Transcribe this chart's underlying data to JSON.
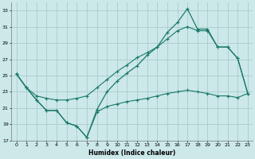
{
  "xlabel": "Humidex (Indice chaleur)",
  "background_color": "#cce8e8",
  "grid_color": "#aacccc",
  "line_color": "#1a7a6a",
  "xlim": [
    -0.5,
    23.5
  ],
  "ylim": [
    17,
    34
  ],
  "yticks": [
    17,
    19,
    21,
    23,
    25,
    27,
    29,
    31,
    33
  ],
  "xticks": [
    0,
    1,
    2,
    3,
    4,
    5,
    6,
    7,
    8,
    9,
    10,
    11,
    12,
    13,
    14,
    15,
    16,
    17,
    18,
    19,
    20,
    21,
    22,
    23
  ],
  "line_zigzag_y": [
    25.2,
    23.5,
    22.0,
    20.7,
    20.7,
    19.2,
    18.8,
    17.4,
    20.8,
    23.0,
    24.3,
    25.3,
    26.2,
    27.5,
    28.5,
    30.3,
    31.5,
    33.2,
    30.7,
    30.7,
    28.5,
    28.5,
    27.1,
    22.8
  ],
  "line_upper_y": [
    25.2,
    23.5,
    22.5,
    22.2,
    22.0,
    22.0,
    22.2,
    22.5,
    23.5,
    24.5,
    25.5,
    26.3,
    27.2,
    27.8,
    28.5,
    29.5,
    30.5,
    31.0,
    30.5,
    30.5,
    28.5,
    28.5,
    27.1,
    22.8
  ],
  "line_lower_y": [
    25.2,
    23.5,
    22.0,
    20.7,
    20.7,
    19.2,
    18.8,
    17.4,
    20.5,
    21.2,
    21.5,
    21.8,
    22.0,
    22.2,
    22.5,
    22.8,
    23.0,
    23.2,
    23.0,
    22.8,
    22.5,
    22.5,
    22.3,
    22.8
  ]
}
